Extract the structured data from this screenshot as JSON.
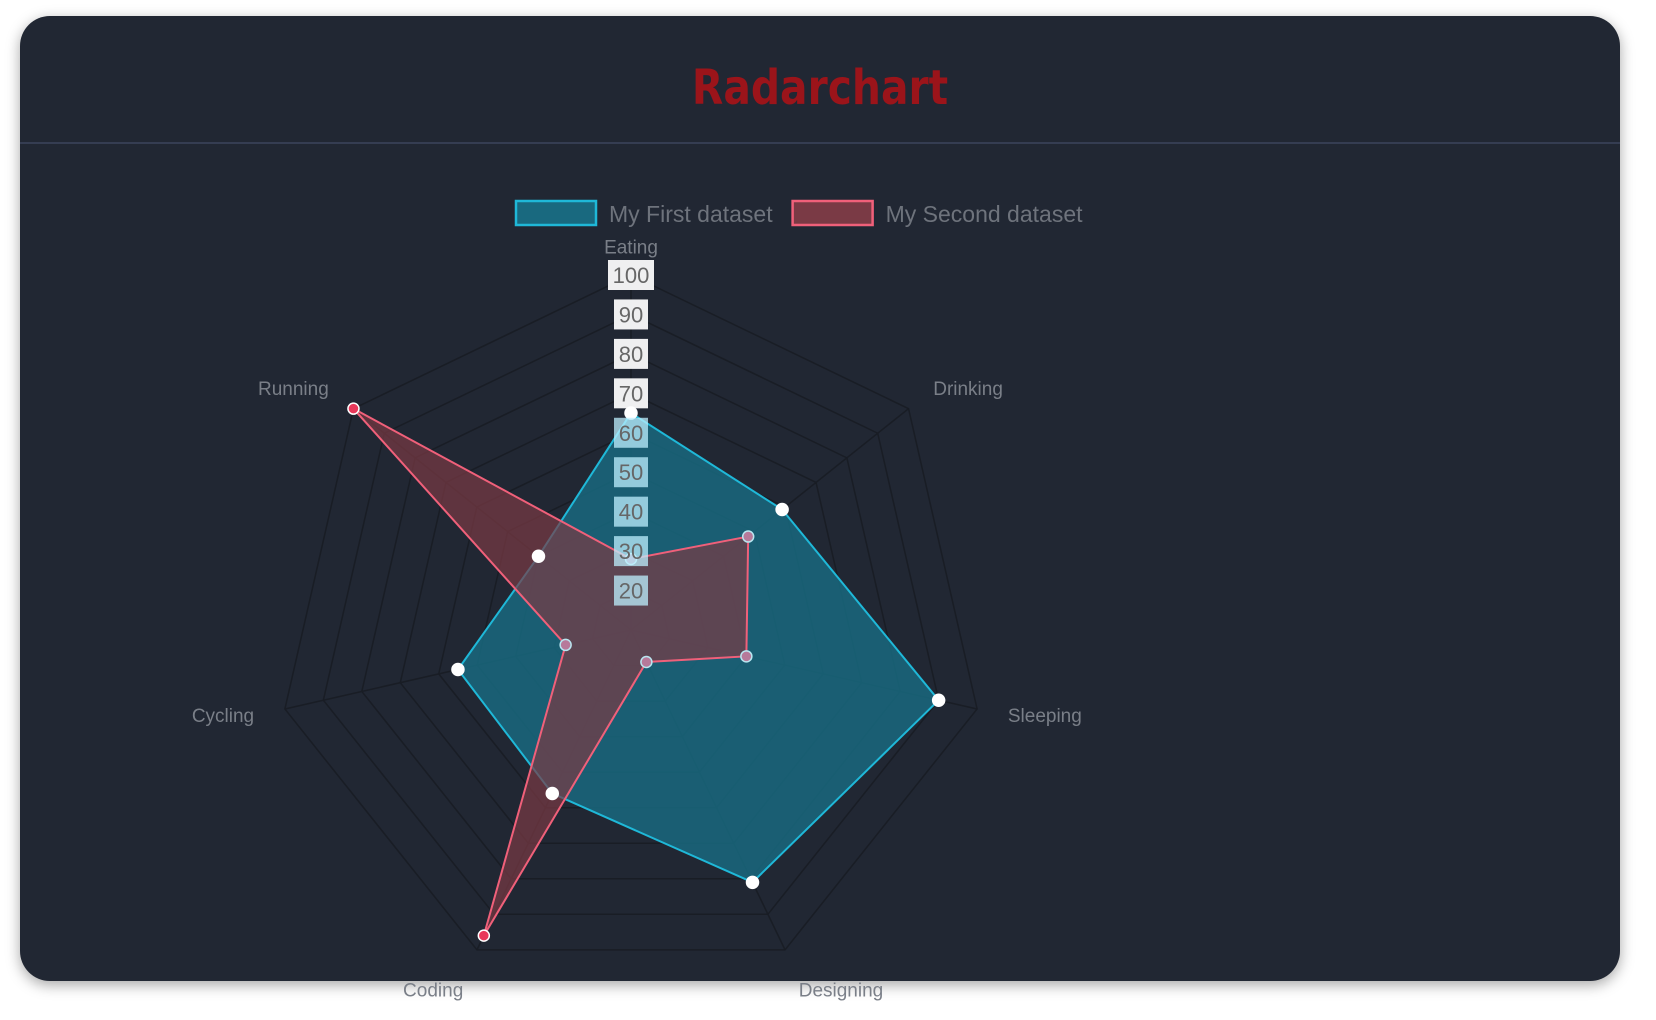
{
  "header": {
    "title": "Radarchart"
  },
  "chart_data": {
    "type": "radar",
    "labels": [
      "Eating",
      "Drinking",
      "Sleeping",
      "Designing",
      "Coding",
      "Cycling",
      "Running"
    ],
    "series": [
      {
        "name": "My First dataset",
        "values": [
          65,
          59,
          90,
          81,
          56,
          55,
          40
        ],
        "border_color": "#1fb8d8",
        "fill_color": "#19697f",
        "point_color": "#ffffff"
      },
      {
        "name": "My Second dataset",
        "values": [
          28,
          48,
          40,
          19,
          96,
          27,
          100
        ],
        "border_color": "#f0607a",
        "fill_color": "#7a3a45",
        "point_color": "#b77a9a"
      }
    ],
    "r_range": [
      10,
      100
    ],
    "ticks": [
      20,
      30,
      40,
      50,
      60,
      70,
      80,
      90,
      100
    ],
    "legend_position": "top",
    "grid": true
  }
}
